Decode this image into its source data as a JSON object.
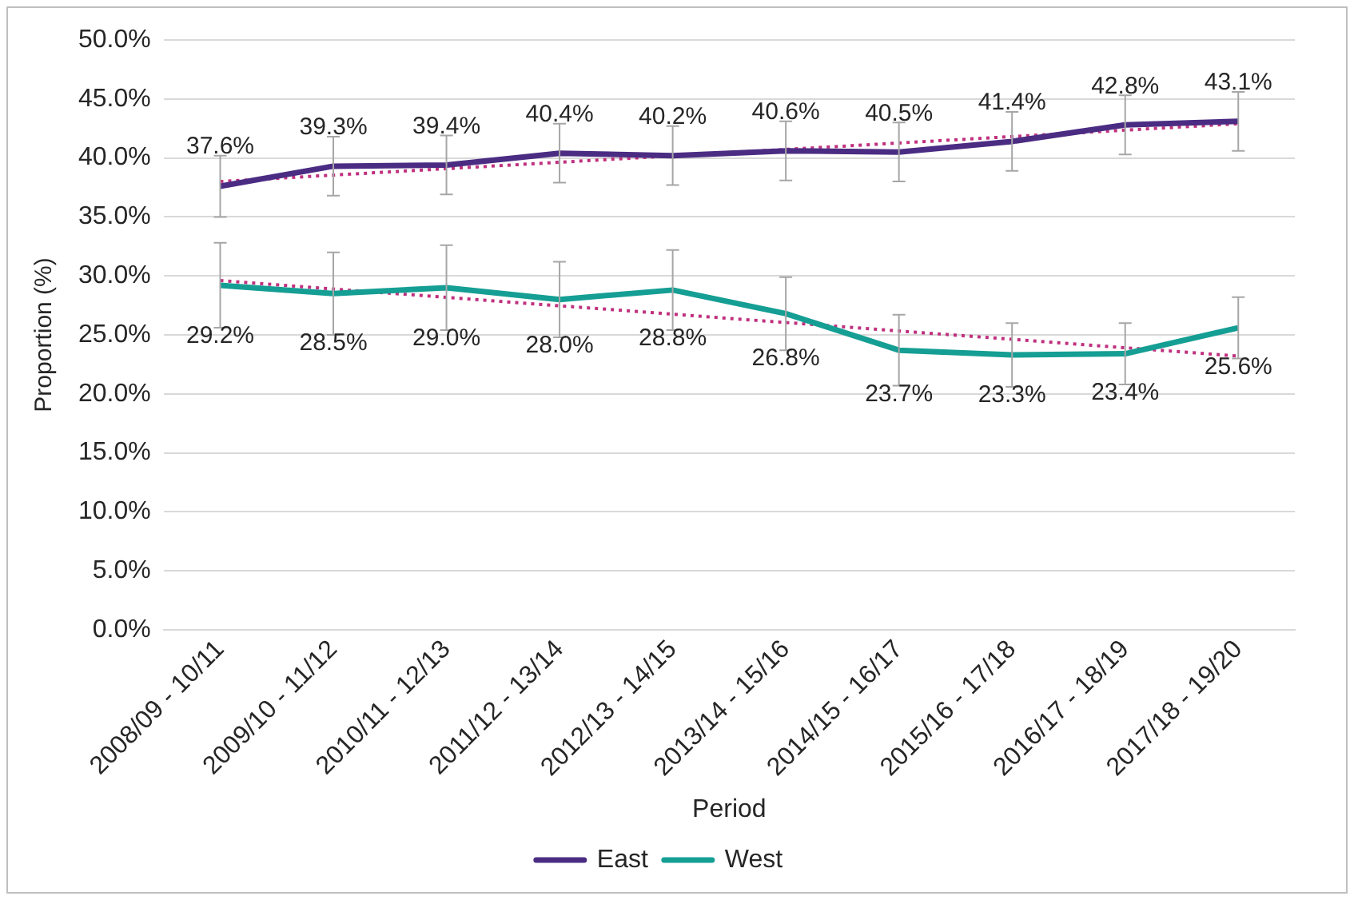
{
  "chart_data": {
    "type": "line",
    "xlabel": "Period",
    "ylabel": "Proportion (%)",
    "categories": [
      "2008/09 - 10/11",
      "2009/10 - 11/12",
      "2010/11 - 12/13",
      "2011/12 - 13/14",
      "2012/13 - 14/15",
      "2013/14 - 15/16",
      "2014/15 - 16/17",
      "2015/16 - 17/18",
      "2016/17 - 18/19",
      "2017/18 - 19/20"
    ],
    "series": [
      {
        "name": "East",
        "color": "#4b2c83",
        "values": [
          37.6,
          39.3,
          39.4,
          40.4,
          40.2,
          40.6,
          40.5,
          41.4,
          42.8,
          43.1
        ],
        "errors": [
          2.6,
          2.5,
          2.5,
          2.5,
          2.5,
          2.5,
          2.5,
          2.5,
          2.5,
          2.5
        ],
        "value_labels": [
          "37.6%",
          "39.3%",
          "39.4%",
          "40.4%",
          "40.2%",
          "40.6%",
          "40.5%",
          "41.4%",
          "42.8%",
          "43.1%"
        ]
      },
      {
        "name": "West",
        "color": "#159e94",
        "values": [
          29.2,
          28.5,
          29.0,
          28.0,
          28.8,
          26.8,
          23.7,
          23.3,
          23.4,
          25.6
        ],
        "errors": [
          3.6,
          3.5,
          3.6,
          3.2,
          3.4,
          3.1,
          3.0,
          2.7,
          2.6,
          2.6
        ],
        "value_labels": [
          "29.2%",
          "28.5%",
          "29.0%",
          "28.0%",
          "28.8%",
          "26.8%",
          "23.7%",
          "23.3%",
          "23.4%",
          "25.6%"
        ]
      },
      {
        "type": "line",
        "color": "#c0307f",
        "line_style": "dotted",
        "x": [
          "2008/09 - 10/11",
          "2017/18 - 19/20"
        ],
        "values": [
          38.0,
          42.9
        ]
      },
      {
        "type": "line",
        "color": "#c0307f",
        "line_style": "dotted",
        "x": [
          "2008/09 - 10/11",
          "2017/18 - 19/20"
        ],
        "values": [
          29.6,
          23.2
        ]
      }
    ],
    "ylim": [
      0,
      50
    ],
    "yticks": [
      {
        "value": 0,
        "label": "0.0%"
      },
      {
        "value": 5,
        "label": "5.0%"
      },
      {
        "value": 10,
        "label": "10.0%"
      },
      {
        "value": 15,
        "label": "15.0%"
      },
      {
        "value": 20,
        "label": "20.0%"
      },
      {
        "value": 25,
        "label": "25.0%"
      },
      {
        "value": 30,
        "label": "30.0%"
      },
      {
        "value": 35,
        "label": "35.0%"
      },
      {
        "value": 40,
        "label": "40.0%"
      },
      {
        "value": 45,
        "label": "45.0%"
      },
      {
        "value": 50,
        "label": "50.0%"
      }
    ],
    "grid": "y",
    "legend": "bottom",
    "marker": "none"
  }
}
